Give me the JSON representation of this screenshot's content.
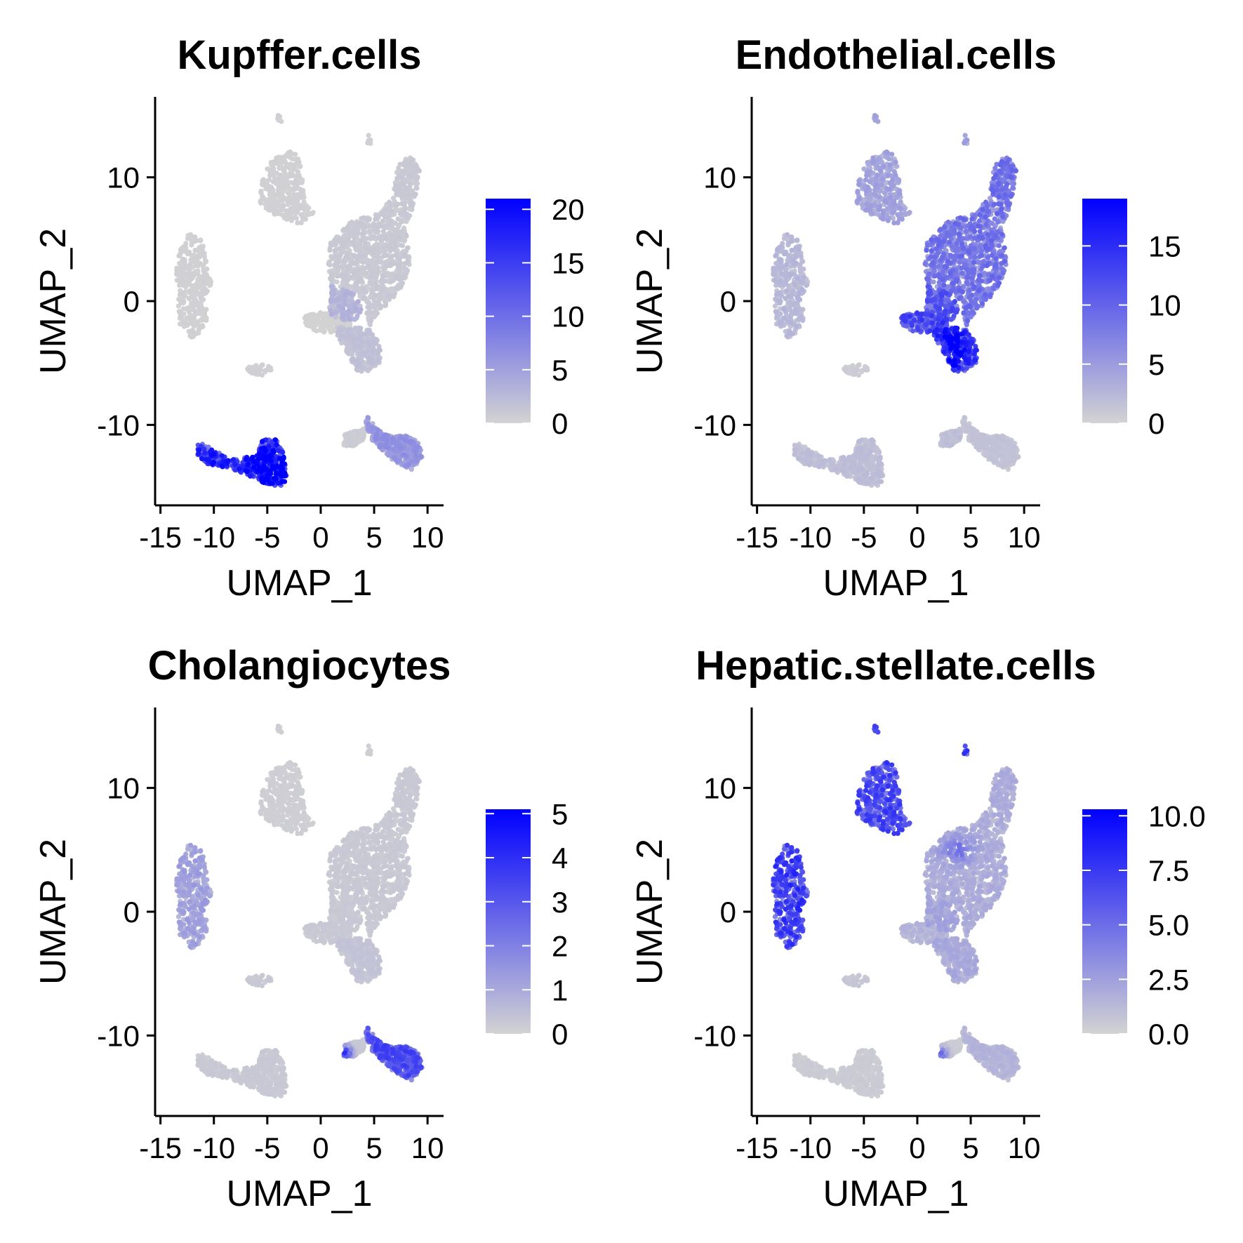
{
  "colors": {
    "low": "#d3d3d3",
    "high": "#0000ff"
  },
  "chart_data": [
    {
      "type": "scatter",
      "title": "Kupffer.cells",
      "xlabel": "UMAP_1",
      "ylabel": "UMAP_2",
      "xlim": [
        -15.5,
        11.5
      ],
      "ylim": [
        -16.5,
        16.5
      ],
      "xticks": [
        -15,
        -10,
        -5,
        0,
        5,
        10
      ],
      "yticks": [
        -10,
        0,
        10
      ],
      "legend": {
        "position": "right",
        "range": [
          0,
          21
        ],
        "ticks": [
          0,
          5,
          10,
          15,
          20
        ],
        "labels": [
          "0",
          "5",
          "10",
          "15",
          "20"
        ]
      },
      "cluster_levels": {
        "A": 0.2,
        "B": 0.8,
        "C": 2.5,
        "D": 0.1,
        "E": 1.5,
        "F": 14,
        "G": 5,
        "H": 0.6,
        "I": 0.2,
        "J": 0.2
      },
      "hotspots": [
        {
          "x": -4.5,
          "y": -13.6,
          "sx": 1.1,
          "sy": 0.9,
          "add": 5
        }
      ]
    },
    {
      "type": "scatter",
      "title": "Endothelial.cells",
      "xlabel": "UMAP_1",
      "ylabel": "UMAP_2",
      "xlim": [
        -15.5,
        11.5
      ],
      "ylim": [
        -16.5,
        16.5
      ],
      "xticks": [
        -15,
        -10,
        -5,
        0,
        5,
        10
      ],
      "yticks": [
        -10,
        0,
        10
      ],
      "legend": {
        "position": "right",
        "range": [
          0,
          19
        ],
        "ticks": [
          0,
          5,
          10,
          15
        ],
        "labels": [
          "0",
          "5",
          "10",
          "15"
        ]
      },
      "cluster_levels": {
        "A": 3.5,
        "B": 7,
        "C": 9,
        "D": 10,
        "E": 11,
        "F": 1.5,
        "G": 1.2,
        "H": 1.5,
        "I": 2,
        "J": 0.5
      },
      "hotspots": [
        {
          "x": 3.4,
          "y": -3.8,
          "sx": 0.8,
          "sy": 1.3,
          "add": 5
        }
      ]
    },
    {
      "type": "scatter",
      "title": "Cholangiocytes",
      "xlabel": "UMAP_1",
      "ylabel": "UMAP_2",
      "xlim": [
        -15.5,
        11.5
      ],
      "ylim": [
        -16.5,
        16.5
      ],
      "xticks": [
        -15,
        -10,
        -5,
        0,
        5,
        10
      ],
      "yticks": [
        -10,
        0,
        10
      ],
      "legend": {
        "position": "right",
        "range": [
          0,
          5.1
        ],
        "ticks": [
          0,
          1,
          2,
          3,
          4,
          5
        ],
        "labels": [
          "0",
          "1",
          "2",
          "3",
          "4",
          "5"
        ]
      },
      "cluster_levels": {
        "A": 0.1,
        "B": 0.2,
        "C": 0.2,
        "D": 0.2,
        "E": 0.3,
        "F": 0.2,
        "G": 2.6,
        "H": 0.2,
        "I": 1,
        "J": 0.2
      },
      "hotspots": [
        {
          "x": 2.1,
          "y": -11.4,
          "sx": 0.5,
          "sy": 0.4,
          "add": 3.5
        }
      ]
    },
    {
      "type": "scatter",
      "title": "Hepatic.stellate.cells",
      "xlabel": "UMAP_1",
      "ylabel": "UMAP_2",
      "xlim": [
        -15.5,
        11.5
      ],
      "ylim": [
        -16.5,
        16.5
      ],
      "xticks": [
        -15,
        -10,
        -5,
        0,
        5,
        10
      ],
      "yticks": [
        -10,
        0,
        10
      ],
      "legend": {
        "position": "right",
        "range": [
          0,
          10.3
        ],
        "ticks": [
          0,
          2.5,
          5,
          7.5,
          10
        ],
        "labels": [
          "0.0",
          "2.5",
          "5.0",
          "7.5",
          "10.0"
        ]
      },
      "cluster_levels": {
        "A": 5.5,
        "B": 1.5,
        "C": 1.8,
        "D": 1.2,
        "E": 1.6,
        "F": 0.3,
        "G": 1.2,
        "H": 0.3,
        "I": 6,
        "J": 0.5
      },
      "hotspots": [
        {
          "x": 2.0,
          "y": -11.5,
          "sx": 0.5,
          "sy": 0.4,
          "add": 5
        },
        {
          "x": 3.8,
          "y": 5.0,
          "sx": 1.0,
          "sy": 0.7,
          "add": 2.5
        }
      ]
    }
  ]
}
